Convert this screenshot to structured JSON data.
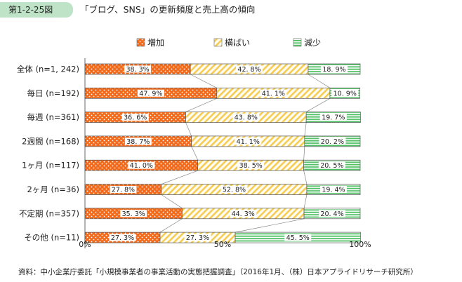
{
  "header": {
    "figure_number": "第1-2-25図",
    "title": "「ブログ、SNS」の更新頻度と売上高の傾向"
  },
  "source": "資料：中小企業庁委託「小規模事業者の事業活動の実態把握調査」（2016年1月、（株）日本アプライドリサーチ研究所）",
  "colors": {
    "増加": "#f26b1d",
    "横ばい": "#f5cc54",
    "減少": "#4fbf63"
  },
  "chart_data": {
    "type": "bar",
    "orientation": "horizontal",
    "stacked": "percent",
    "categories": [
      "全体 (n=1, 242)",
      "毎日 (n=192)",
      "毎週 (n=361)",
      "2週間 (n=168)",
      "1ヶ月 (n=117)",
      "2ヶ月 (n=36)",
      "不定期 (n=357)",
      "その他 (n=11)"
    ],
    "series": [
      {
        "name": "増加",
        "values": [
          38.3,
          47.9,
          36.6,
          38.7,
          41.0,
          27.8,
          35.3,
          27.3
        ],
        "labels": [
          "38. 3%",
          "47. 9%",
          "36. 6%",
          "38. 7%",
          "41. 0%",
          "27. 8%",
          "35. 3%",
          "27. 3%"
        ]
      },
      {
        "name": "横ばい",
        "values": [
          42.8,
          41.1,
          43.8,
          41.1,
          38.5,
          52.8,
          44.3,
          27.3
        ],
        "labels": [
          "42. 8%",
          "41. 1%",
          "43. 8%",
          "41. 1%",
          "38. 5%",
          "52. 8%",
          "44. 3%",
          "27. 3%"
        ]
      },
      {
        "name": "減少",
        "values": [
          18.9,
          10.9,
          19.7,
          20.2,
          20.5,
          19.4,
          20.4,
          45.5
        ],
        "labels": [
          "18. 9%",
          "10. 9%",
          "19. 7%",
          "20. 2%",
          "20. 5%",
          "19. 4%",
          "20. 4%",
          "45. 5%"
        ]
      }
    ],
    "xlim": [
      0,
      100
    ],
    "xticks": [
      "0%",
      "50%",
      "100%"
    ],
    "legend_position": "top",
    "grid": false
  }
}
